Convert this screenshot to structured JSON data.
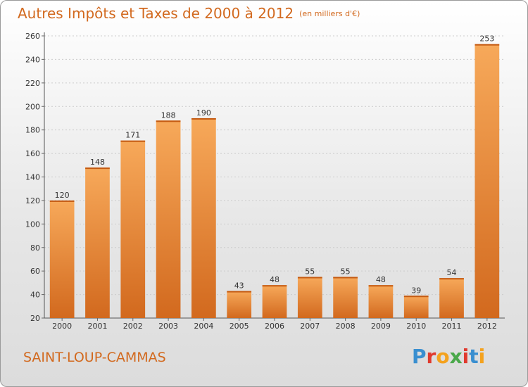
{
  "title": "Autres Impôts et Taxes de 2000 à 2012",
  "unit": "(en milliers d'€)",
  "town": "SAINT-LOUP-CAMMAS",
  "logo": {
    "letters": [
      "P",
      "r",
      "o",
      "x",
      "i",
      "t",
      "i"
    ],
    "colors": [
      "#3a8fd0",
      "#e03a2e",
      "#f4a21e",
      "#4aa84a",
      "#e03a2e",
      "#3a8fd0",
      "#f4a21e"
    ]
  },
  "colors": {
    "bar_light": "#f7a95a",
    "bar_dark": "#d2691e",
    "title": "#d2691e",
    "grid": "#cccccc"
  },
  "chart_data": {
    "type": "bar",
    "categories": [
      "2000",
      "2001",
      "2002",
      "2003",
      "2004",
      "2005",
      "2006",
      "2007",
      "2008",
      "2009",
      "2010",
      "2011",
      "2012"
    ],
    "values": [
      120,
      148,
      171,
      188,
      190,
      43,
      48,
      55,
      55,
      48,
      39,
      54,
      253
    ],
    "yticks": [
      20,
      40,
      60,
      80,
      100,
      120,
      140,
      160,
      180,
      200,
      220,
      240,
      260
    ],
    "ylim": [
      20,
      260
    ],
    "grid": true
  }
}
